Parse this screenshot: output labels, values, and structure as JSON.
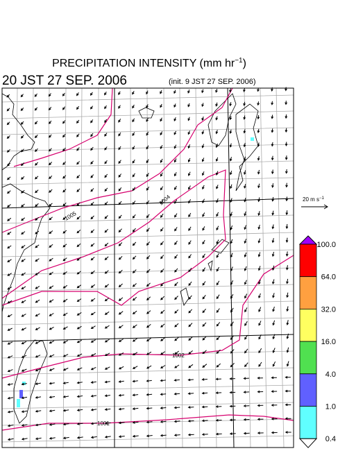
{
  "header": {
    "title_main": "PRECIPITATION INTENSITY (mm hr",
    "title_exp": "−1",
    "title_end": ")",
    "valid_time": "20 JST 27 SEP. 2006",
    "init_time": "(init. 9 JST 27 SEP. 2006)"
  },
  "scale_arrow": {
    "label": "20 m s",
    "exp": "−1"
  },
  "contour_labels": [
    "1004",
    "1005",
    "1002",
    "1001"
  ],
  "colorbar": {
    "labels": [
      "100.0",
      "64.0",
      "32.0",
      "16.0",
      "4.0",
      "1.0",
      "0.4"
    ],
    "colors": [
      "#ff0000",
      "#ffa040",
      "#ffff60",
      "#50e050",
      "#6060ff",
      "#60ffff"
    ],
    "over_color": "#a000ff",
    "under_color": "#ffffff"
  }
}
